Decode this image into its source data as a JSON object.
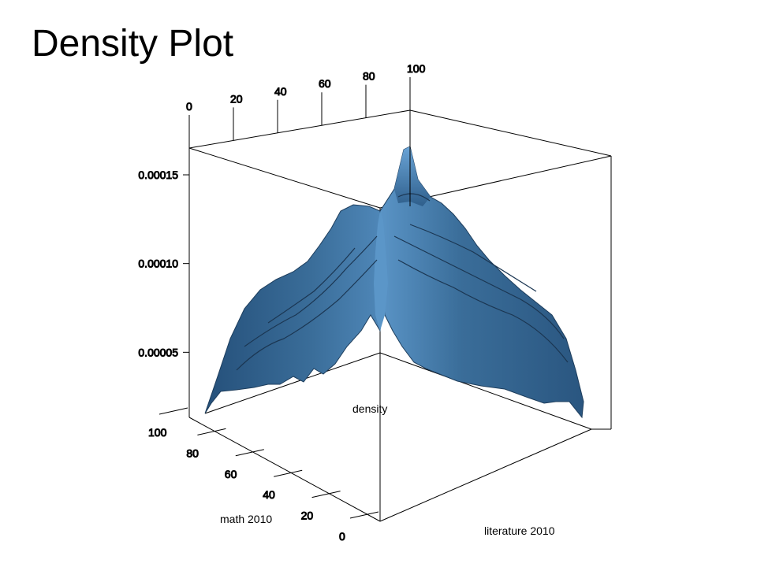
{
  "title": "Density Plot",
  "chart_data": {
    "type": "surface3d",
    "xlabel": "literature 2010",
    "ylabel": "math 2010",
    "zlabel": "density",
    "xlim": [
      0,
      100
    ],
    "ylim": [
      0,
      100
    ],
    "zlim": [
      0,
      0.00018
    ],
    "top_ticks": [
      "0",
      "20",
      "40",
      "60",
      "80",
      "100"
    ],
    "left_ticks": [
      "0",
      "20",
      "40",
      "60",
      "80",
      "100"
    ],
    "z_ticks": [
      "0.00005",
      "0.00010",
      "0.00015"
    ],
    "peak_density": 0.00017,
    "surface_color": "#3a6d99",
    "box_color": "#000000"
  }
}
